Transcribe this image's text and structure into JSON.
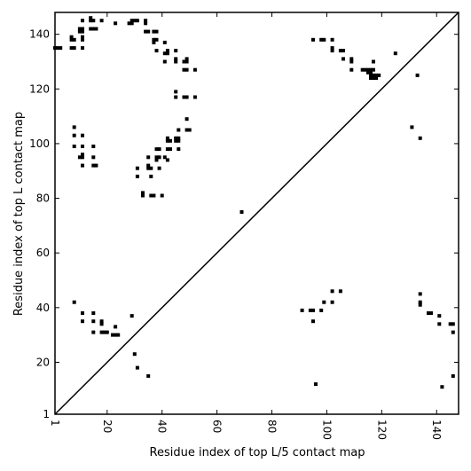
{
  "chart_data": {
    "type": "scatter",
    "title": "",
    "xlabel": "Residue index of top L/5 contact map",
    "ylabel": "Residue index of top L contact map",
    "xlim": [
      1,
      148
    ],
    "ylim": [
      1,
      148
    ],
    "xticks": [
      1,
      20,
      40,
      60,
      80,
      100,
      120,
      140
    ],
    "yticks": [
      1,
      20,
      40,
      60,
      80,
      100,
      120,
      140
    ],
    "diagonal": true,
    "grid": false,
    "marker_color": "#000000",
    "upper_points": [
      [
        1,
        135
      ],
      [
        2,
        135
      ],
      [
        3,
        135
      ],
      [
        7,
        135
      ],
      [
        8,
        135
      ],
      [
        11,
        135
      ],
      [
        7,
        138
      ],
      [
        8,
        138
      ],
      [
        7,
        139
      ],
      [
        11,
        138
      ],
      [
        11,
        139
      ],
      [
        10,
        141
      ],
      [
        11,
        141
      ],
      [
        10,
        142
      ],
      [
        11,
        142
      ],
      [
        11,
        145
      ],
      [
        14,
        145
      ],
      [
        15,
        145
      ],
      [
        14,
        146
      ],
      [
        14,
        142
      ],
      [
        15,
        142
      ],
      [
        16,
        142
      ],
      [
        18,
        145
      ],
      [
        23,
        144
      ],
      [
        28,
        144
      ],
      [
        29,
        144
      ],
      [
        29,
        145
      ],
      [
        30,
        145
      ],
      [
        31,
        145
      ],
      [
        34,
        144
      ],
      [
        34,
        145
      ],
      [
        34,
        141
      ],
      [
        35,
        141
      ],
      [
        37,
        141
      ],
      [
        38,
        141
      ],
      [
        37,
        138
      ],
      [
        38,
        138
      ],
      [
        37,
        137
      ],
      [
        38,
        134
      ],
      [
        41,
        137
      ],
      [
        41,
        133
      ],
      [
        42,
        133
      ],
      [
        42,
        134
      ],
      [
        41,
        130
      ],
      [
        45,
        134
      ],
      [
        45,
        131
      ],
      [
        45,
        130
      ],
      [
        48,
        130
      ],
      [
        49,
        131
      ],
      [
        49,
        130
      ],
      [
        48,
        127
      ],
      [
        49,
        127
      ],
      [
        52,
        127
      ],
      [
        45,
        119
      ],
      [
        45,
        117
      ],
      [
        48,
        117
      ],
      [
        49,
        117
      ],
      [
        52,
        117
      ],
      [
        8,
        106
      ],
      [
        8,
        103
      ],
      [
        8,
        99
      ],
      [
        11,
        103
      ],
      [
        11,
        99
      ],
      [
        15,
        99
      ],
      [
        10,
        95
      ],
      [
        11,
        95
      ],
      [
        11,
        96
      ],
      [
        15,
        95
      ],
      [
        11,
        92
      ],
      [
        15,
        92
      ],
      [
        16,
        92
      ],
      [
        31,
        91
      ],
      [
        35,
        92
      ],
      [
        35,
        91
      ],
      [
        36,
        91
      ],
      [
        31,
        88
      ],
      [
        36,
        88
      ],
      [
        35,
        95
      ],
      [
        38,
        98
      ],
      [
        39,
        98
      ],
      [
        38,
        95
      ],
      [
        39,
        95
      ],
      [
        38,
        94
      ],
      [
        39,
        91
      ],
      [
        33,
        82
      ],
      [
        33,
        81
      ],
      [
        36,
        81
      ],
      [
        37,
        81
      ],
      [
        40,
        81
      ],
      [
        41,
        95
      ],
      [
        42,
        94
      ],
      [
        42,
        98
      ],
      [
        43,
        98
      ],
      [
        42,
        101
      ],
      [
        42,
        102
      ],
      [
        43,
        101
      ],
      [
        45,
        102
      ],
      [
        46,
        102
      ],
      [
        45,
        101
      ],
      [
        46,
        101
      ],
      [
        46,
        98
      ],
      [
        46,
        105
      ],
      [
        49,
        105
      ],
      [
        50,
        105
      ],
      [
        49,
        109
      ],
      [
        69,
        75
      ],
      [
        95,
        138
      ],
      [
        98,
        138
      ],
      [
        99,
        138
      ],
      [
        102,
        138
      ],
      [
        102,
        135
      ],
      [
        102,
        134
      ],
      [
        105,
        134
      ],
      [
        106,
        134
      ],
      [
        106,
        131
      ],
      [
        109,
        131
      ],
      [
        109,
        130
      ],
      [
        109,
        127
      ],
      [
        113,
        127
      ],
      [
        114,
        127
      ],
      [
        115,
        127
      ],
      [
        116,
        127
      ],
      [
        117,
        127
      ],
      [
        115,
        126
      ],
      [
        116,
        126
      ],
      [
        116,
        125
      ],
      [
        117,
        125
      ],
      [
        118,
        125
      ],
      [
        119,
        125
      ],
      [
        116,
        124
      ],
      [
        117,
        124
      ],
      [
        118,
        124
      ],
      [
        117,
        130
      ],
      [
        125,
        133
      ],
      [
        133,
        125
      ],
      [
        131,
        106
      ],
      [
        134,
        102
      ]
    ],
    "lower_points": [
      [
        8,
        42
      ],
      [
        11,
        38
      ],
      [
        11,
        35
      ],
      [
        15,
        38
      ],
      [
        15,
        35
      ],
      [
        15,
        31
      ],
      [
        18,
        35
      ],
      [
        18,
        34
      ],
      [
        18,
        31
      ],
      [
        19,
        31
      ],
      [
        20,
        31
      ],
      [
        22,
        30
      ],
      [
        23,
        30
      ],
      [
        24,
        30
      ],
      [
        23,
        33
      ],
      [
        29,
        37
      ],
      [
        30,
        23
      ],
      [
        31,
        18
      ],
      [
        35,
        15
      ],
      [
        91,
        39
      ],
      [
        94,
        39
      ],
      [
        95,
        39
      ],
      [
        95,
        35
      ],
      [
        98,
        39
      ],
      [
        99,
        42
      ],
      [
        102,
        42
      ],
      [
        102,
        46
      ],
      [
        105,
        46
      ],
      [
        96,
        12
      ],
      [
        134,
        45
      ],
      [
        134,
        42
      ],
      [
        134,
        41
      ],
      [
        137,
        38
      ],
      [
        138,
        38
      ],
      [
        141,
        37
      ],
      [
        141,
        34
      ],
      [
        145,
        34
      ],
      [
        146,
        34
      ],
      [
        146,
        31
      ],
      [
        142,
        11
      ],
      [
        146,
        15
      ]
    ]
  }
}
